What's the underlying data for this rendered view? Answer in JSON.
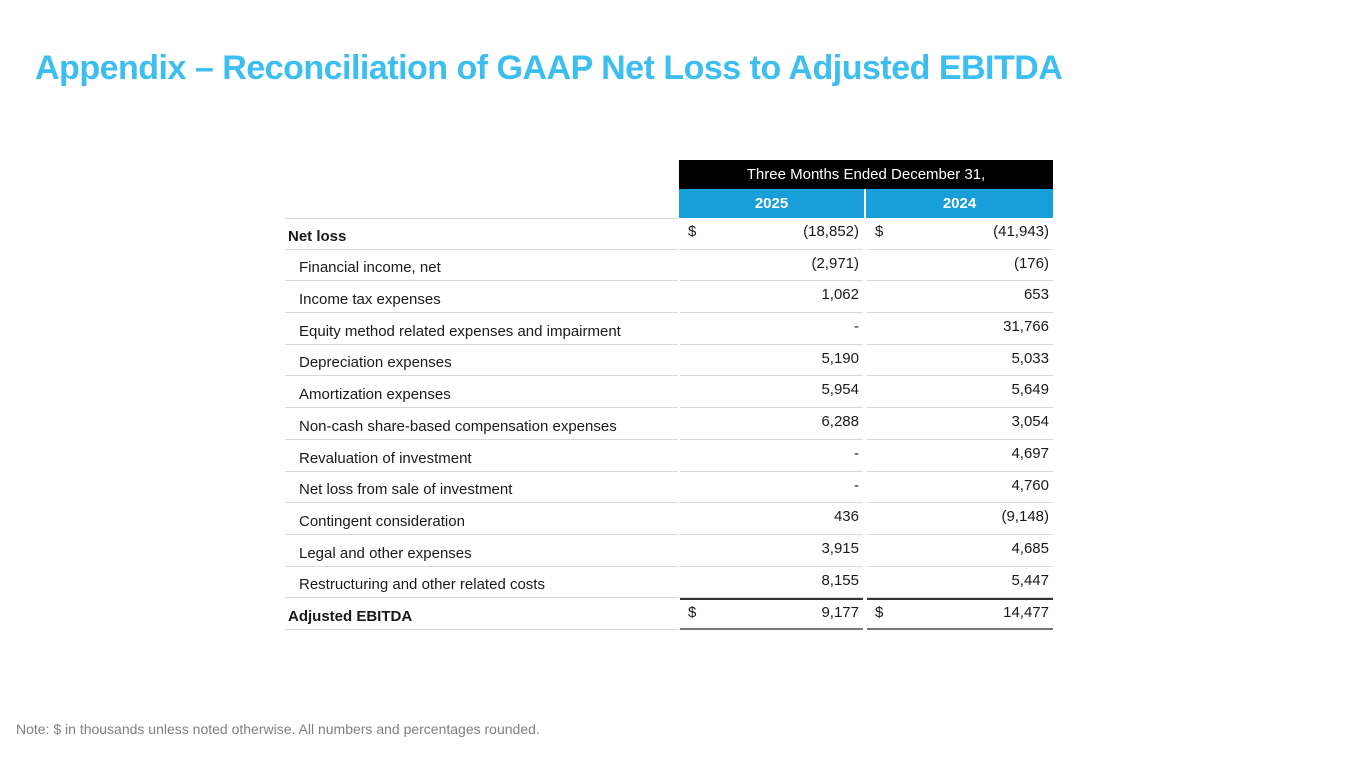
{
  "slide": {
    "title": "Appendix – Reconciliation of GAAP Net Loss to Adjusted EBITDA",
    "note": "Note: $ in thousands unless noted otherwise. All numbers and percentages rounded."
  },
  "table": {
    "header": "Three Months Ended December 31,",
    "columns": [
      "2025",
      "2024"
    ],
    "currency_symbol": "$",
    "rows": [
      {
        "label": "Net loss",
        "style": "bold",
        "dollar": true,
        "values": [
          "(18,852)",
          "(41,943)"
        ]
      },
      {
        "label": "Financial income, net",
        "style": "item",
        "dollar": false,
        "values": [
          "(2,971)",
          "(176)"
        ]
      },
      {
        "label": "Income tax expenses",
        "style": "item",
        "dollar": false,
        "values": [
          "1,062",
          "653"
        ]
      },
      {
        "label": "Equity method related expenses and impairment",
        "style": "item",
        "dollar": false,
        "values": [
          "-",
          "31,766"
        ]
      },
      {
        "label": "Depreciation expenses",
        "style": "item",
        "dollar": false,
        "values": [
          "5,190",
          "5,033"
        ]
      },
      {
        "label": "Amortization expenses",
        "style": "item",
        "dollar": false,
        "values": [
          "5,954",
          "5,649"
        ]
      },
      {
        "label": "Non-cash share-based compensation expenses",
        "style": "item",
        "dollar": false,
        "values": [
          "6,288",
          "3,054"
        ]
      },
      {
        "label": "Revaluation of investment",
        "style": "item",
        "dollar": false,
        "values": [
          "-",
          "4,697"
        ]
      },
      {
        "label": "Net loss from sale of investment",
        "style": "item",
        "dollar": false,
        "values": [
          "-",
          "4,760"
        ]
      },
      {
        "label": "Contingent consideration",
        "style": "item",
        "dollar": false,
        "values": [
          "436",
          "(9,148)"
        ]
      },
      {
        "label": "Legal and other expenses",
        "style": "item",
        "dollar": false,
        "values": [
          "3,915",
          "4,685"
        ]
      },
      {
        "label": "Restructuring and other related costs",
        "style": "item",
        "dollar": false,
        "values": [
          "8,155",
          "5,447"
        ]
      },
      {
        "label": "Adjusted EBITDA",
        "style": "total",
        "dollar": true,
        "values": [
          "9,177",
          "14,477"
        ]
      }
    ]
  },
  "colors": {
    "title": "#3CBEF0",
    "header_bg": "#000000",
    "year_bg": "#189ED9",
    "row_border": "#D9D9D9",
    "total_border_top": "#333333",
    "total_border_bottom": "#777777",
    "note_text": "#7F7F7F"
  }
}
